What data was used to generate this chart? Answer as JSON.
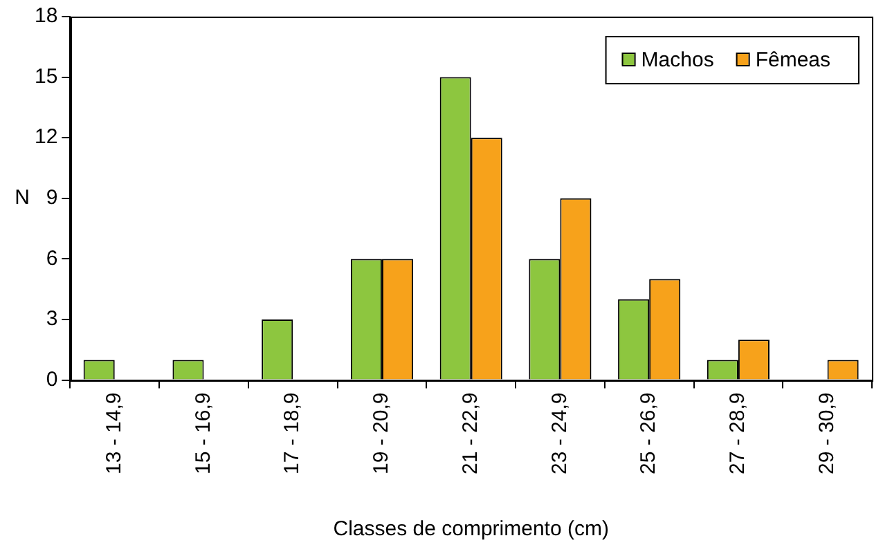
{
  "chart_data": {
    "type": "bar",
    "xlabel": "Classes de comprimento (cm)",
    "ylabel": "N",
    "categories": [
      "13 - 14,9",
      "15 - 16,9",
      "17 - 18,9",
      "19 - 20,9",
      "21 - 22,9",
      "23 - 24,9",
      "25 - 26,9",
      "27 - 28,9",
      "29 - 30,9"
    ],
    "series": [
      {
        "name": "Machos",
        "color": "#8dc63f",
        "values": [
          1,
          1,
          3,
          6,
          15,
          6,
          4,
          1,
          0
        ]
      },
      {
        "name": "Fêmeas",
        "color": "#f7a21b",
        "values": [
          0,
          0,
          0,
          6,
          12,
          9,
          5,
          2,
          1
        ]
      }
    ],
    "ylim": [
      0,
      18
    ],
    "yticks": [
      0,
      3,
      6,
      9,
      12,
      15,
      18
    ],
    "grid": false,
    "legend": "top right"
  }
}
